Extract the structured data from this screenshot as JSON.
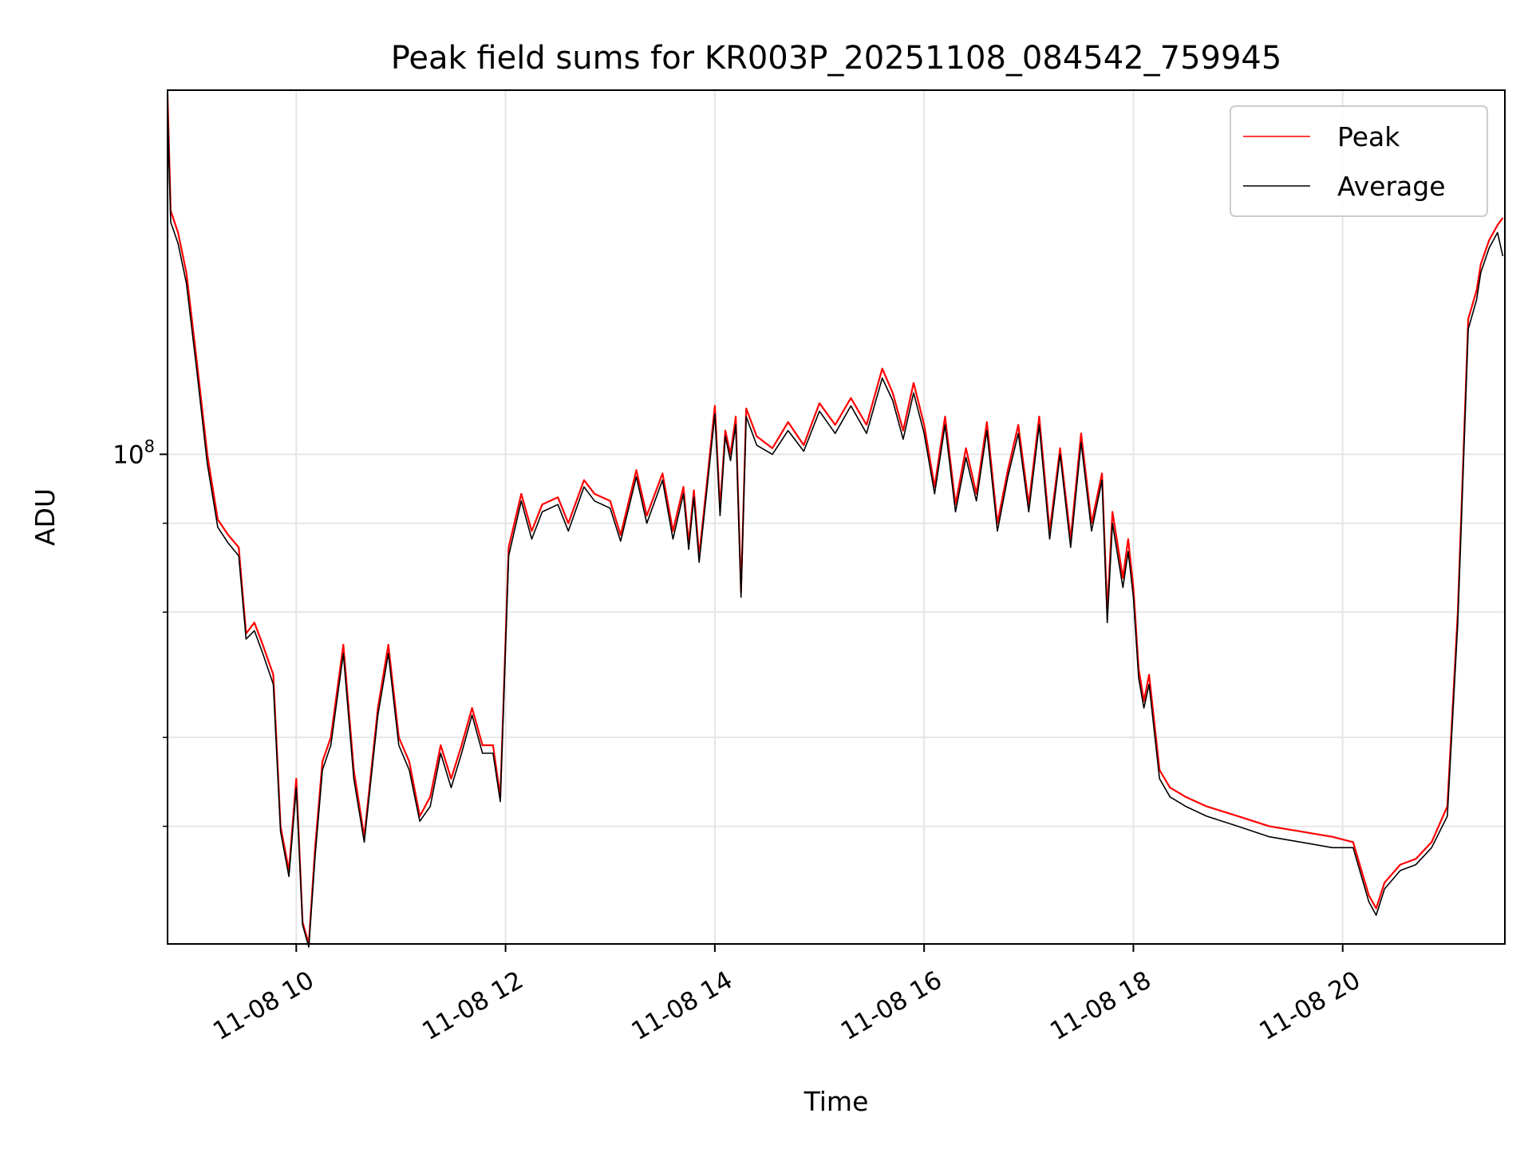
{
  "chart_data": {
    "type": "line",
    "title": "Peak field sums for KR003P_20251108_084542_759945",
    "xlabel": "Time",
    "ylabel": "ADU",
    "x_range_hours": [
      8.77,
      21.55
    ],
    "y_range": [
      20500000,
      325000000
    ],
    "y_scale": "log",
    "grid": true,
    "legend": {
      "placement": "top-right"
    },
    "x_ticks": [
      {
        "hour": 10,
        "label": "11-08 10"
      },
      {
        "hour": 12,
        "label": "11-08 12"
      },
      {
        "hour": 14,
        "label": "11-08 14"
      },
      {
        "hour": 16,
        "label": "11-08 16"
      },
      {
        "hour": 18,
        "label": "11-08 18"
      },
      {
        "hour": 20,
        "label": "11-08 20"
      }
    ],
    "y_major_ticks": [
      {
        "value": 100000000,
        "base": "10",
        "exp": "8"
      }
    ],
    "y_minor_ticks": [
      30000000,
      40000000,
      60000000,
      80000000
    ],
    "series": [
      {
        "name": "Peak",
        "color": "#ff0000",
        "x": [
          8.77,
          8.8,
          8.87,
          8.95,
          9.05,
          9.15,
          9.25,
          9.35,
          9.45,
          9.52,
          9.6,
          9.68,
          9.78,
          9.85,
          9.93,
          10.0,
          10.06,
          10.12,
          10.18,
          10.25,
          10.33,
          10.45,
          10.55,
          10.65,
          10.78,
          10.88,
          10.98,
          11.08,
          11.18,
          11.28,
          11.38,
          11.48,
          11.58,
          11.68,
          11.78,
          11.88,
          11.95,
          12.03,
          12.15,
          12.25,
          12.35,
          12.5,
          12.6,
          12.75,
          12.85,
          13.0,
          13.1,
          13.25,
          13.35,
          13.5,
          13.6,
          13.7,
          13.75,
          13.8,
          13.85,
          13.92,
          14.0,
          14.05,
          14.1,
          14.15,
          14.2,
          14.25,
          14.3,
          14.4,
          14.55,
          14.7,
          14.85,
          15.0,
          15.15,
          15.3,
          15.45,
          15.6,
          15.7,
          15.8,
          15.9,
          16.0,
          16.1,
          16.2,
          16.3,
          16.4,
          16.5,
          16.6,
          16.7,
          16.8,
          16.9,
          17.0,
          17.1,
          17.2,
          17.3,
          17.4,
          17.5,
          17.6,
          17.7,
          17.75,
          17.8,
          17.9,
          17.95,
          18.0,
          18.05,
          18.1,
          18.15,
          18.25,
          18.35,
          18.5,
          18.7,
          19.0,
          19.3,
          19.6,
          19.9,
          20.1,
          20.25,
          20.32,
          20.4,
          20.55,
          20.7,
          20.85,
          21.0,
          21.1,
          21.2,
          21.28,
          21.32,
          21.4,
          21.48,
          21.53
        ],
        "values": [
          320000000,
          220000000,
          205000000,
          180000000,
          135000000,
          100000000,
          81000000,
          77000000,
          74000000,
          56000000,
          58000000,
          54000000,
          49000000,
          30000000,
          26000000,
          35000000,
          22000000,
          20500000,
          28000000,
          37000000,
          40000000,
          54000000,
          36000000,
          29000000,
          44000000,
          54000000,
          40000000,
          37000000,
          31000000,
          33000000,
          39000000,
          35000000,
          39000000,
          44000000,
          39000000,
          39000000,
          33000000,
          74000000,
          88000000,
          78000000,
          85000000,
          87000000,
          80000000,
          92000000,
          88000000,
          86000000,
          77000000,
          95000000,
          82000000,
          94000000,
          78000000,
          90000000,
          75000000,
          89000000,
          72000000,
          90000000,
          117000000,
          84000000,
          108000000,
          100000000,
          113000000,
          64000000,
          116000000,
          106000000,
          102000000,
          111000000,
          103000000,
          118000000,
          110000000,
          120000000,
          110000000,
          132000000,
          122000000,
          108000000,
          126000000,
          110000000,
          90000000,
          113000000,
          85000000,
          102000000,
          88000000,
          111000000,
          80000000,
          95000000,
          110000000,
          85000000,
          113000000,
          78000000,
          102000000,
          76000000,
          107000000,
          80000000,
          94000000,
          60000000,
          83000000,
          67000000,
          76000000,
          65000000,
          50000000,
          45000000,
          49000000,
          36000000,
          34000000,
          33000000,
          32000000,
          31000000,
          30000000,
          29500000,
          29000000,
          28500000,
          24000000,
          23000000,
          25000000,
          26500000,
          27000000,
          28500000,
          32000000,
          60000000,
          155000000,
          170000000,
          185000000,
          200000000,
          210000000,
          215000000
        ]
      },
      {
        "name": "Average",
        "color": "#000000",
        "x": [
          8.77,
          8.8,
          8.87,
          8.95,
          9.05,
          9.15,
          9.25,
          9.35,
          9.45,
          9.52,
          9.6,
          9.68,
          9.78,
          9.85,
          9.93,
          10.0,
          10.06,
          10.12,
          10.18,
          10.25,
          10.33,
          10.45,
          10.55,
          10.65,
          10.78,
          10.88,
          10.98,
          11.08,
          11.18,
          11.28,
          11.38,
          11.48,
          11.58,
          11.68,
          11.78,
          11.88,
          11.95,
          12.03,
          12.15,
          12.25,
          12.35,
          12.5,
          12.6,
          12.75,
          12.85,
          13.0,
          13.1,
          13.25,
          13.35,
          13.5,
          13.6,
          13.7,
          13.75,
          13.8,
          13.85,
          13.92,
          14.0,
          14.05,
          14.1,
          14.15,
          14.2,
          14.25,
          14.3,
          14.4,
          14.55,
          14.7,
          14.85,
          15.0,
          15.15,
          15.3,
          15.45,
          15.6,
          15.7,
          15.8,
          15.9,
          16.0,
          16.1,
          16.2,
          16.3,
          16.4,
          16.5,
          16.6,
          16.7,
          16.8,
          16.9,
          17.0,
          17.1,
          17.2,
          17.3,
          17.4,
          17.5,
          17.6,
          17.7,
          17.75,
          17.8,
          17.9,
          17.95,
          18.0,
          18.05,
          18.1,
          18.15,
          18.25,
          18.35,
          18.5,
          18.7,
          19.0,
          19.3,
          19.6,
          19.9,
          20.1,
          20.25,
          20.32,
          20.4,
          20.55,
          20.7,
          20.85,
          21.0,
          21.1,
          21.2,
          21.28,
          21.32,
          21.4,
          21.48,
          21.53
        ],
        "values": [
          310000000,
          212000000,
          198000000,
          174000000,
          131000000,
          97000000,
          79000000,
          75000000,
          72000000,
          55000000,
          56500000,
          52500000,
          47500000,
          29500000,
          25500000,
          34000000,
          21800000,
          20300000,
          27200000,
          36000000,
          39000000,
          52500000,
          35000000,
          28500000,
          43000000,
          52500000,
          39000000,
          36000000,
          30500000,
          32000000,
          38000000,
          34000000,
          38000000,
          43000000,
          38000000,
          38000000,
          32500000,
          72000000,
          86000000,
          76000000,
          83000000,
          85000000,
          78000000,
          90000000,
          86000000,
          84000000,
          75500000,
          93000000,
          80000000,
          92000000,
          76000000,
          88000000,
          73500000,
          87000000,
          70500000,
          88000000,
          114000000,
          82000000,
          106000000,
          98000000,
          110000000,
          63000000,
          113000000,
          103000000,
          100000000,
          108000000,
          101000000,
          115000000,
          107000000,
          117000000,
          107000000,
          128000000,
          119000000,
          105000000,
          122000000,
          107000000,
          88000000,
          110000000,
          83000000,
          99000000,
          86000000,
          108000000,
          78000000,
          93000000,
          107000000,
          83000000,
          110000000,
          76000000,
          100000000,
          74000000,
          104000000,
          78000000,
          92000000,
          58000000,
          80000000,
          65000000,
          73000000,
          63000000,
          48500000,
          44000000,
          47500000,
          35000000,
          33000000,
          32000000,
          31000000,
          30000000,
          29000000,
          28500000,
          28000000,
          28000000,
          23500000,
          22500000,
          24500000,
          26000000,
          26500000,
          28000000,
          31000000,
          58000000,
          150000000,
          165000000,
          180000000,
          195000000,
          205000000,
          190000000
        ]
      }
    ]
  }
}
